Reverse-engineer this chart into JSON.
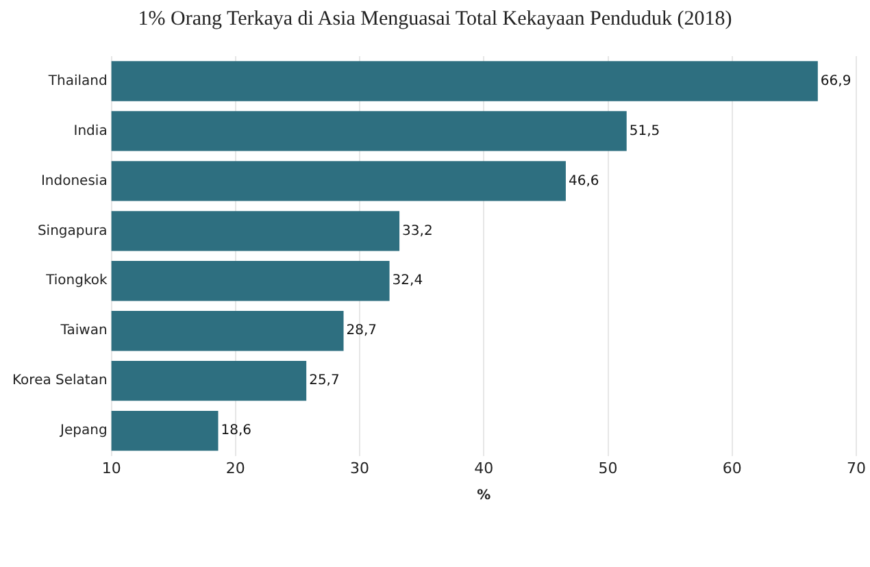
{
  "chart_data": {
    "type": "bar",
    "orientation": "horizontal",
    "title": "1% Orang Terkaya di Asia Menguasai Total Kekayaan Penduduk (2018)",
    "xlabel": "%",
    "categories": [
      "Thailand",
      "India",
      "Indonesia",
      "Singapura",
      "Tiongkok",
      "Taiwan",
      "Korea Selatan",
      "Jepang"
    ],
    "values": [
      66.9,
      51.5,
      46.6,
      33.2,
      32.4,
      28.7,
      25.7,
      18.6
    ],
    "value_labels": [
      "66,9",
      "51,5",
      "46,6",
      "33,2",
      "32,4",
      "28,7",
      "25,7",
      "18,6"
    ],
    "color": "#2e6f80",
    "xlim": [
      10,
      70
    ],
    "xticks": [
      10,
      20,
      30,
      40,
      50,
      60,
      70
    ],
    "grid": "x",
    "legend": false
  }
}
